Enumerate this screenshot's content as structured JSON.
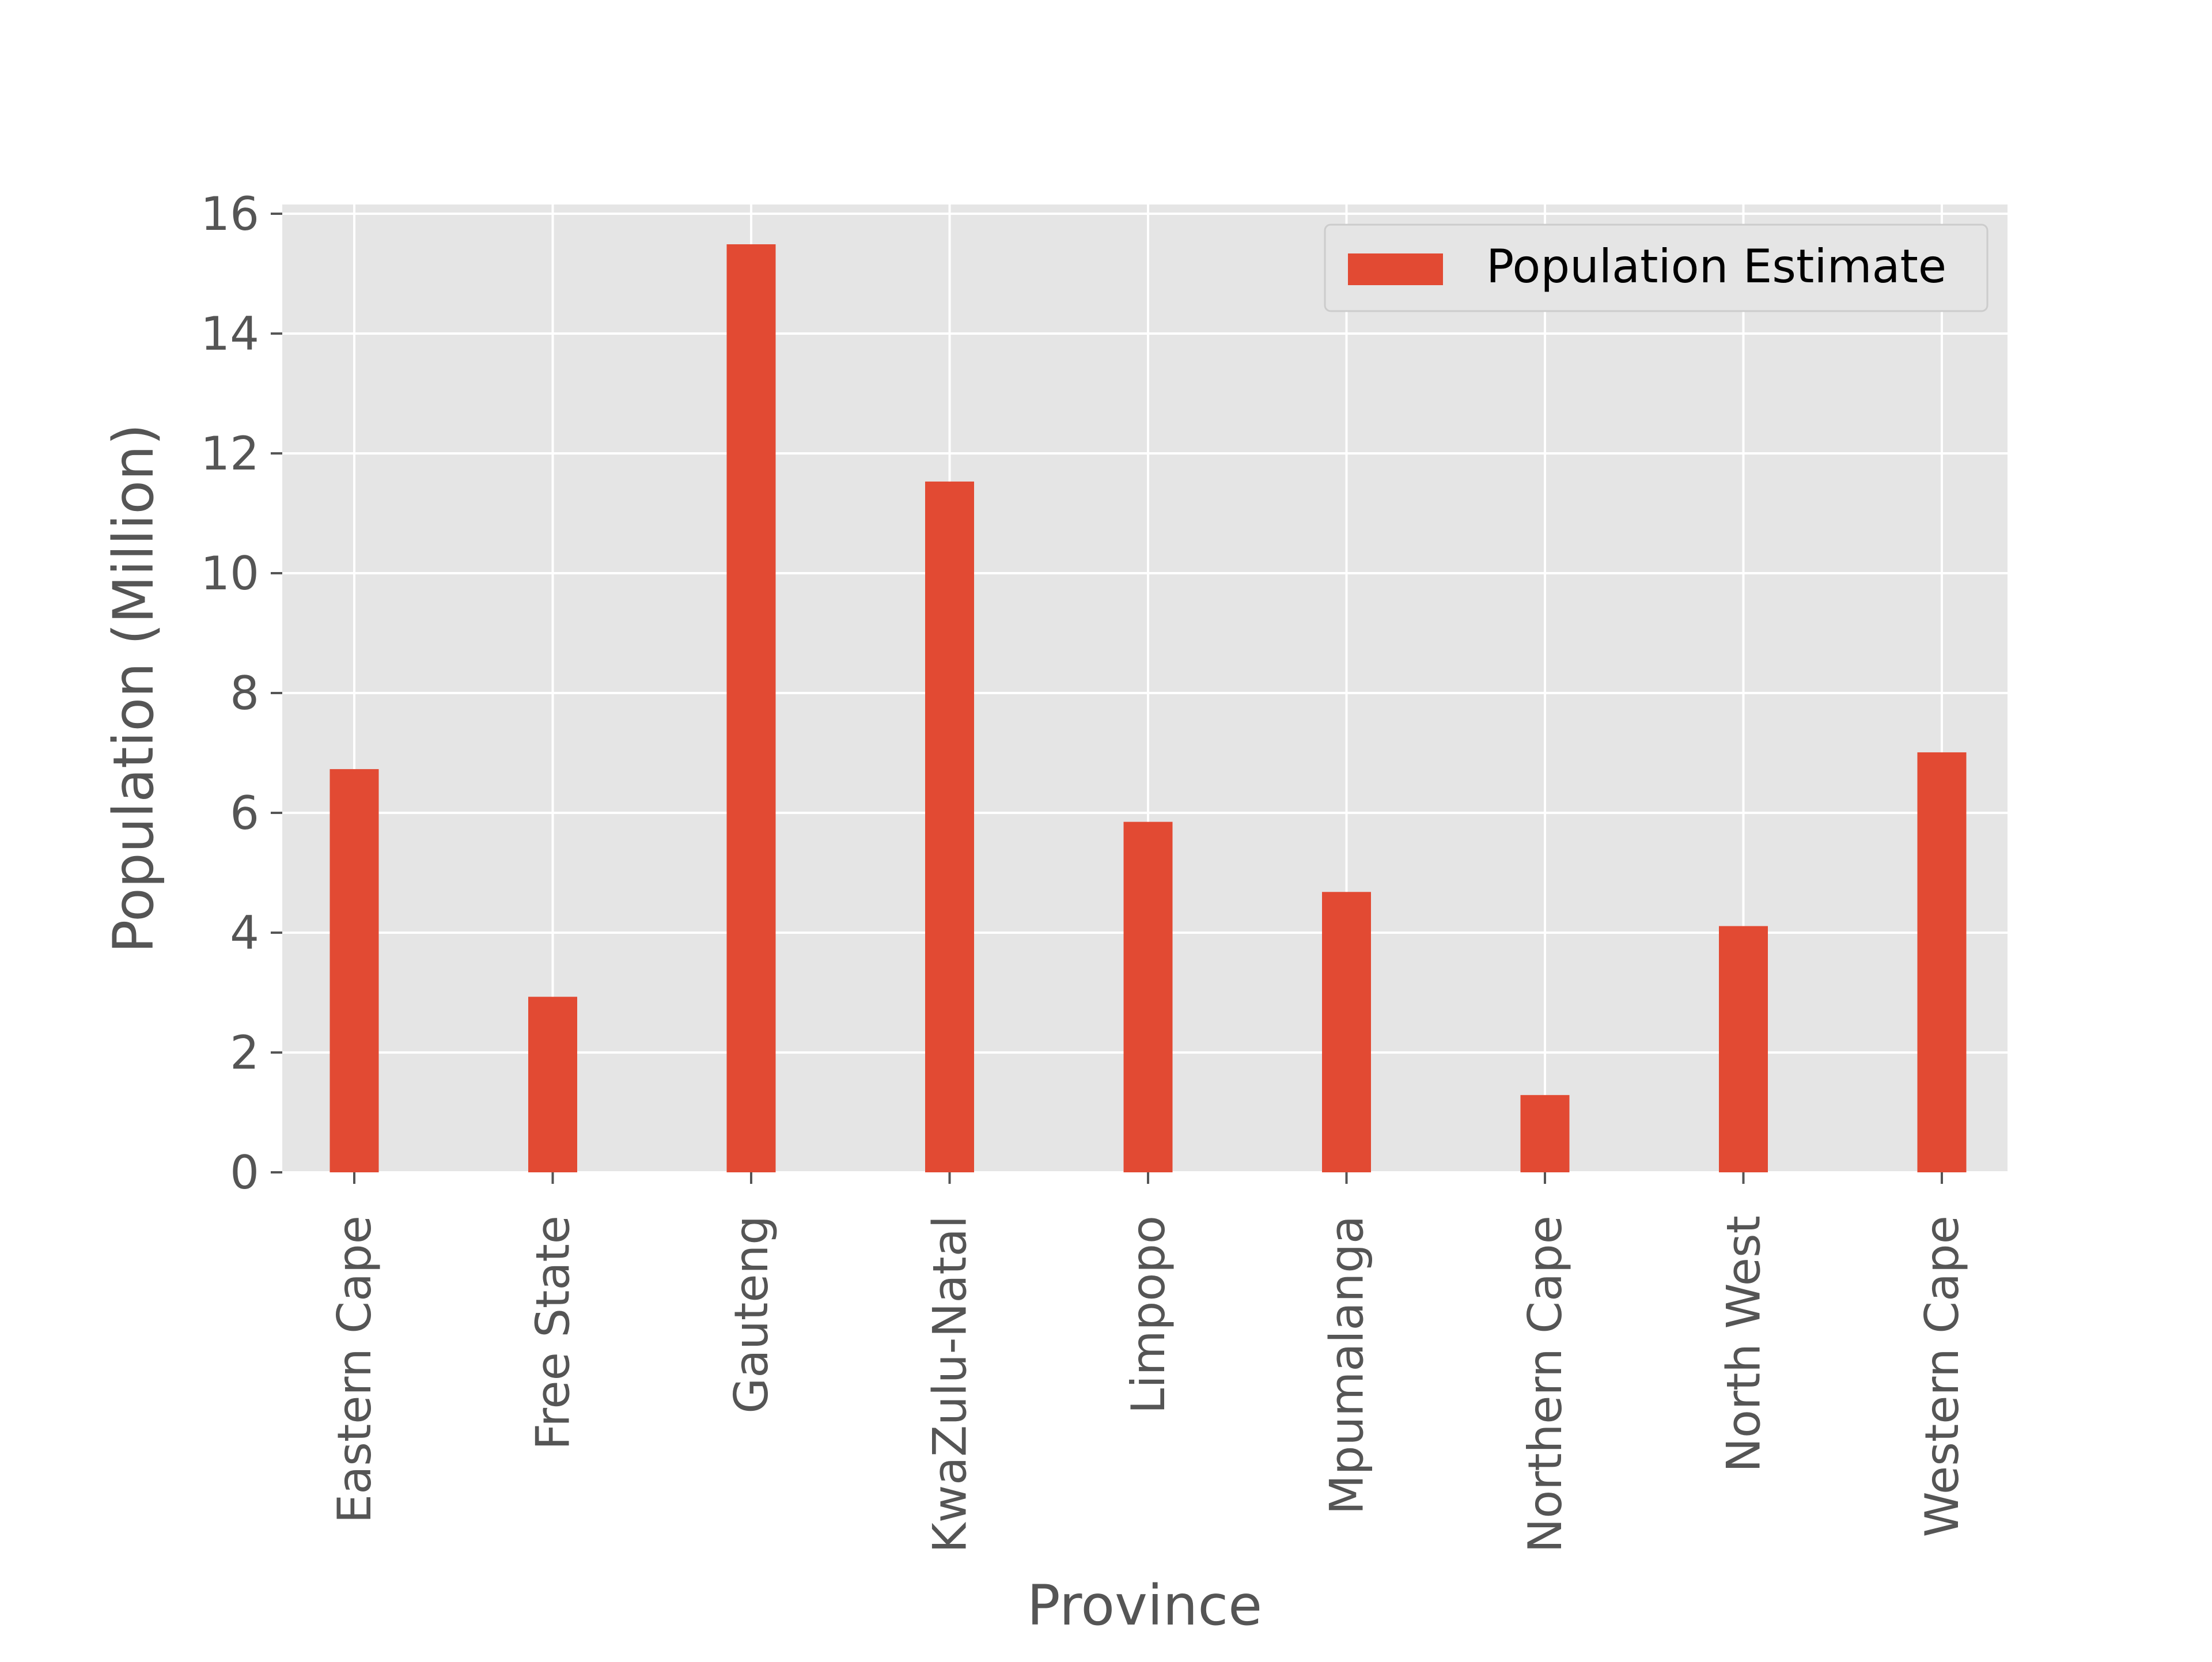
{
  "chart_data": {
    "type": "bar",
    "title": "",
    "xlabel": "Province",
    "ylabel": "Population (Million)",
    "categories": [
      "Eastern Cape",
      "Free State",
      "Gauteng",
      "KwaZulu-Natal",
      "Limpopo",
      "Mpumalanga",
      "Northern Cape",
      "North West",
      "Western Cape"
    ],
    "series": [
      {
        "name": "Population Estimate",
        "values": [
          6.73,
          2.93,
          15.49,
          11.53,
          5.85,
          4.68,
          1.29,
          4.11,
          7.01
        ],
        "color": "#E24A33"
      }
    ],
    "ylim": [
      0,
      16.2
    ],
    "yticks": [
      0,
      2,
      4,
      6,
      8,
      10,
      12,
      14,
      16
    ],
    "grid": true,
    "legend_position": "top-right",
    "style": {
      "plot_background": "#E5E5E5",
      "grid_color": "#FFFFFF",
      "text_color": "#555555"
    }
  }
}
